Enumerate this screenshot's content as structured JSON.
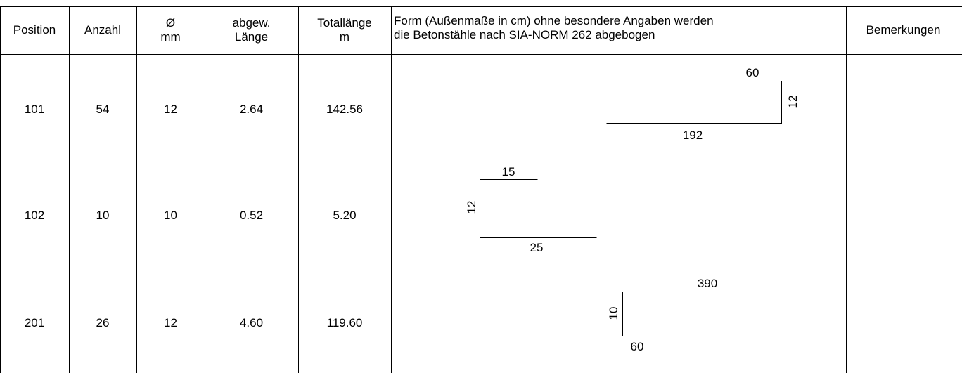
{
  "header": {
    "position": "Position",
    "anzahl": "Anzahl",
    "diameter_symbol": "Ø",
    "diameter_unit": "mm",
    "length_line1": "abgew.",
    "length_line2": "Länge",
    "total_line1": "Totallänge",
    "total_line2": "m",
    "form_line1": "Form (Außenmaße in cm) ohne besondere Angaben werden",
    "form_line2": "die Betonstähle nach SIA-NORM 262 abgebogen",
    "remarks": "Bemerkungen"
  },
  "rows": [
    {
      "position": "101",
      "anzahl": "54",
      "diameter": "12",
      "length": "2.64",
      "total": "142.56",
      "remarks": "",
      "shape": {
        "top": "60",
        "side": "12",
        "bottom": "192"
      }
    },
    {
      "position": "102",
      "anzahl": "10",
      "diameter": "10",
      "length": "0.52",
      "total": "5.20",
      "remarks": "",
      "shape": {
        "top": "15",
        "side": "12",
        "bottom": "25"
      }
    },
    {
      "position": "201",
      "anzahl": "26",
      "diameter": "12",
      "length": "4.60",
      "total": "119.60",
      "remarks": "",
      "shape": {
        "top": "390",
        "side": "10",
        "bottom": "60"
      }
    }
  ]
}
